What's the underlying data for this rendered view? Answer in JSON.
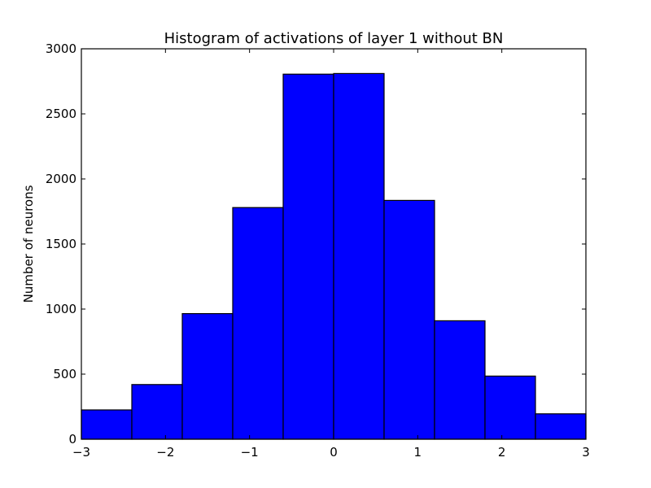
{
  "chart_data": {
    "type": "bar",
    "title": "Histogram of activations of layer 1  without BN",
    "xlabel": "",
    "ylabel": "Number of neurons",
    "bin_edges": [
      -3,
      -2.4,
      -1.8,
      -1.2,
      -0.6,
      0,
      0.6,
      1.2,
      1.8,
      2.4,
      3
    ],
    "values": [
      225,
      420,
      965,
      1780,
      2805,
      2810,
      1835,
      910,
      485,
      195
    ],
    "xlim": [
      -3,
      3
    ],
    "ylim": [
      0,
      3000
    ],
    "xticks": [
      -3,
      -2,
      -1,
      0,
      1,
      2,
      3
    ],
    "xtick_labels": [
      "−3",
      "−2",
      "−1",
      "0",
      "1",
      "2",
      "3"
    ],
    "yticks": [
      0,
      500,
      1000,
      1500,
      2000,
      2500,
      3000
    ],
    "ytick_labels": [
      "0",
      "500",
      "1000",
      "1500",
      "2000",
      "2500",
      "3000"
    ],
    "bar_color": "#0000ff",
    "edge_color": "#000000",
    "grid": false,
    "legend": false
  }
}
